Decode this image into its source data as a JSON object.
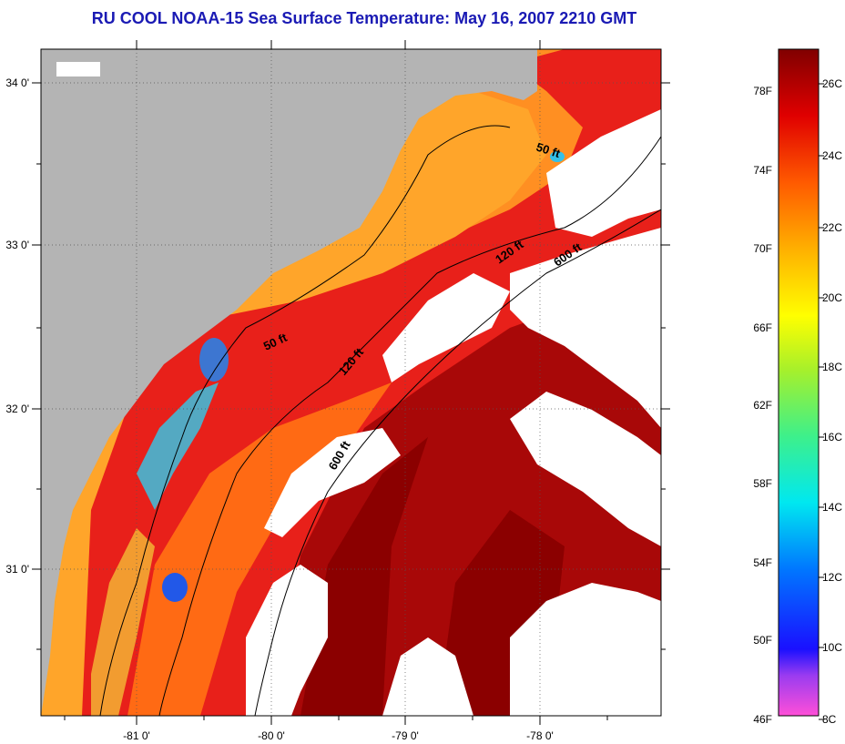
{
  "title": "RU COOL  NOAA-15  Sea Surface Temperature:  May 16, 2007 2210 GMT",
  "map": {
    "lon_labels": [
      "-81 0'",
      "-80 0'",
      "-79 0'",
      "-78 0'"
    ],
    "lat_labels": [
      "34 0'",
      "33 0'",
      "32 0'",
      "31 0'"
    ],
    "contour_labels": {
      "c50_north": "50 ft",
      "c50_south": "50 ft",
      "c120_north": "120 ft",
      "c120_south": "120 ft",
      "c600_north": "600 ft",
      "c600_south": "600 ft"
    },
    "colors": {
      "land": "#b4b4b4",
      "cloud": "#ffffff",
      "warm_dark": "#8b0000",
      "warm": "#d81010",
      "mid": "#ff7a10",
      "shelf": "#ffa52a",
      "cool": "#3ab0f0"
    }
  },
  "colorbar": {
    "f_labels": [
      "78F",
      "74F",
      "70F",
      "66F",
      "62F",
      "58F",
      "54F",
      "50F",
      "46F"
    ],
    "c_labels": [
      "26C",
      "24C",
      "22C",
      "20C",
      "18C",
      "16C",
      "14C",
      "12C",
      "10C",
      "8C"
    ]
  }
}
